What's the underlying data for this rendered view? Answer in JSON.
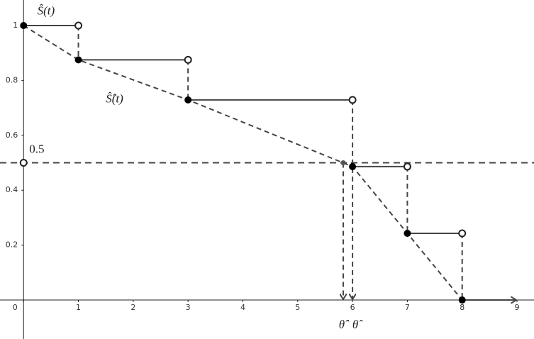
{
  "chart_data": {
    "type": "step",
    "title_step": "Ŝ(t)",
    "title_smooth": "Ŝ̂(t)",
    "x": [
      0,
      1,
      3,
      6,
      7,
      8
    ],
    "values": [
      1,
      0.875,
      0.729,
      0.486,
      0.243,
      0
    ],
    "median_level": 0.5,
    "median_label": "0.5",
    "theta_smooth": 5.83,
    "theta_smooth_label": "θ̂̂",
    "theta_step": 6,
    "theta_step_label": "θ̂",
    "xlim": [
      -0.43,
      9.31
    ],
    "ylim": [
      -0.142,
      1.093
    ],
    "xticks": [
      0,
      1,
      2,
      3,
      4,
      5,
      6,
      7,
      8,
      9
    ],
    "yticks": [
      0.2,
      0.4,
      0.6,
      0.8,
      1
    ],
    "color": "#444444"
  }
}
